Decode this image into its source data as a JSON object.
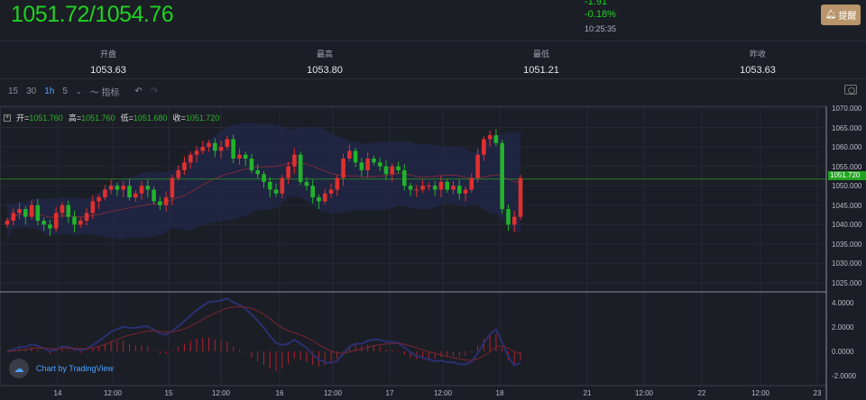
{
  "header": {
    "price": "1051.72/1054.76",
    "change": "-1.91",
    "change_pct": "-0.18%",
    "time": "10:25:35",
    "alert_label": "提醒",
    "alert_icon": "bell-icon"
  },
  "stats": [
    {
      "label": "开盘",
      "value": "1053.63"
    },
    {
      "label": "最高",
      "value": "1053.80"
    },
    {
      "label": "最低",
      "value": "1051.21"
    },
    {
      "label": "昨收",
      "value": "1053.63"
    }
  ],
  "toolbar": {
    "intervals": [
      "15",
      "30",
      "1h",
      "5"
    ],
    "active": "1h",
    "indicators_label": "指标"
  },
  "legend": {
    "open_label": "开=",
    "open": "1051.760",
    "high_label": "高=",
    "high": "1051.760",
    "low_label": "低=",
    "low": "1051.680",
    "close_label": "收=",
    "close": "1051.720"
  },
  "watermark": "Chart by TradingView",
  "colors": {
    "up": "#e0302f",
    "down": "#22b32a",
    "price_green": "#1ed31e",
    "band": "#232a55"
  },
  "chart_data": {
    "type": "candlestick",
    "price_axis": {
      "ticks": [
        "1070.000",
        "1065.000",
        "1060.000",
        "1055.000",
        "1050.000",
        "1045.000",
        "1040.000",
        "1035.000",
        "1030.000",
        "1025.000"
      ],
      "ylim": [
        1022,
        1070
      ],
      "current": "1051.720"
    },
    "macd_axis": {
      "ticks": [
        "4.0000",
        "2.0000",
        "0.0000",
        "-2.0000"
      ],
      "ylim": [
        -3.5,
        5
      ]
    },
    "x_ticks": [
      "14",
      "12:00",
      "15",
      "12:00",
      "16",
      "12:00",
      "17",
      "12:00",
      "18",
      "21",
      "12:00",
      "22",
      "12:00",
      "23"
    ],
    "closes": [
      1041,
      1043,
      1044,
      1042,
      1045,
      1041,
      1040,
      1039,
      1043,
      1045,
      1042,
      1040,
      1041,
      1043,
      1046,
      1047,
      1049,
      1050,
      1049,
      1050,
      1047,
      1048,
      1050,
      1049,
      1046,
      1045,
      1047,
      1052,
      1054,
      1056,
      1058,
      1059,
      1060,
      1061,
      1059,
      1060,
      1062,
      1057,
      1058,
      1057,
      1054,
      1053,
      1051,
      1049,
      1048,
      1052,
      1055,
      1058,
      1051,
      1050,
      1047,
      1046,
      1048,
      1049,
      1052,
      1057,
      1059,
      1056,
      1054,
      1057,
      1056,
      1055,
      1053,
      1055,
      1054,
      1050,
      1049,
      1049,
      1050,
      1050,
      1049,
      1051,
      1049,
      1050,
      1048,
      1049,
      1052,
      1058,
      1062,
      1063,
      1061,
      1044,
      1040,
      1042,
      1052
    ]
  }
}
